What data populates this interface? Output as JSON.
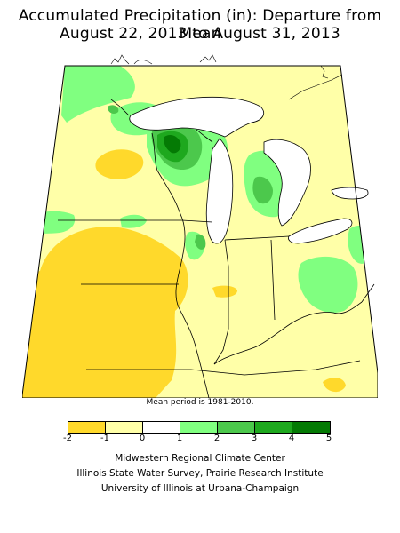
{
  "title_line1": "Accumulated Precipitation (in): Departure from Mean",
  "title_line2": "August 22, 2013 to August 31, 2013",
  "mean_note": "Mean period is 1981-2010.",
  "legend": {
    "ticks": [
      "-2",
      "-1",
      "0",
      "1",
      "2",
      "3",
      "4",
      "5"
    ],
    "colors": [
      "#ffd92b",
      "#ffffa8",
      "#ffffff",
      "#80ff80",
      "#4cc84c",
      "#1ea81e",
      "#047a04",
      "#2f7ebf"
    ]
  },
  "credits": [
    "Midwestern Regional Climate Center",
    "Illinois State Water Survey, Prairie Research Institute",
    "University of Illinois at Urbana-Champaign"
  ]
}
